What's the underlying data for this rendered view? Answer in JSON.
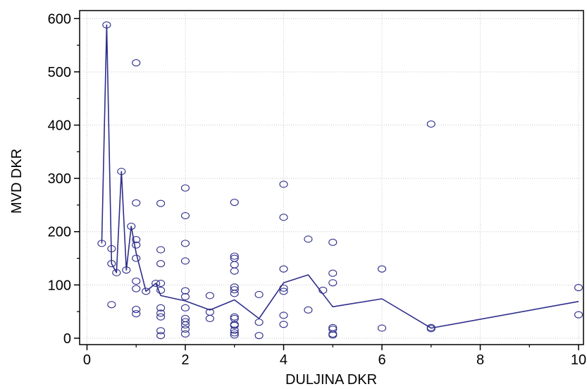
{
  "chart_data": {
    "type": "scatter",
    "xlabel": "DULJINA DKR",
    "ylabel": "MVD DKR",
    "xlim": [
      -0.15,
      10.1
    ],
    "ylim": [
      -12,
      615
    ],
    "xticks": [
      0,
      2,
      4,
      6,
      8,
      10
    ],
    "yticks": [
      0,
      100,
      200,
      300,
      400,
      500,
      600
    ],
    "xminor": [
      1,
      3,
      5,
      7,
      9
    ],
    "yminor": [
      50,
      150,
      250,
      350,
      450,
      550
    ],
    "grid": true,
    "colors": {
      "points": "#2e2e8a",
      "line": "#2e2e8a",
      "grid": "#c8c8c8",
      "axis": "#000000"
    },
    "points": [
      [
        0.3,
        178
      ],
      [
        0.4,
        588
      ],
      [
        0.5,
        168
      ],
      [
        0.5,
        140
      ],
      [
        0.5,
        63
      ],
      [
        0.6,
        123
      ],
      [
        0.7,
        313
      ],
      [
        0.8,
        128
      ],
      [
        0.9,
        210
      ],
      [
        1.0,
        517
      ],
      [
        1.0,
        254
      ],
      [
        1.0,
        185
      ],
      [
        1.0,
        175
      ],
      [
        1.0,
        150
      ],
      [
        1.0,
        107
      ],
      [
        1.0,
        93
      ],
      [
        1.0,
        54
      ],
      [
        1.0,
        46
      ],
      [
        1.2,
        88
      ],
      [
        1.4,
        103
      ],
      [
        1.5,
        253
      ],
      [
        1.5,
        166
      ],
      [
        1.5,
        140
      ],
      [
        1.5,
        103
      ],
      [
        1.5,
        90
      ],
      [
        1.5,
        57
      ],
      [
        1.5,
        47
      ],
      [
        1.5,
        40
      ],
      [
        1.5,
        14
      ],
      [
        1.5,
        5
      ],
      [
        2.0,
        282
      ],
      [
        2.0,
        230
      ],
      [
        2.0,
        178
      ],
      [
        2.0,
        145
      ],
      [
        2.0,
        89
      ],
      [
        2.0,
        78
      ],
      [
        2.0,
        57
      ],
      [
        2.0,
        37
      ],
      [
        2.0,
        31
      ],
      [
        2.0,
        25
      ],
      [
        2.0,
        17
      ],
      [
        2.0,
        8
      ],
      [
        2.5,
        80
      ],
      [
        2.5,
        49
      ],
      [
        2.5,
        37
      ],
      [
        3.0,
        255
      ],
      [
        3.0,
        154
      ],
      [
        3.0,
        150
      ],
      [
        3.0,
        138
      ],
      [
        3.0,
        126
      ],
      [
        3.0,
        96
      ],
      [
        3.0,
        91
      ],
      [
        3.0,
        84
      ],
      [
        3.0,
        40
      ],
      [
        3.0,
        37
      ],
      [
        3.0,
        26
      ],
      [
        3.0,
        24
      ],
      [
        3.0,
        15
      ],
      [
        3.0,
        10
      ],
      [
        3.0,
        6
      ],
      [
        3.5,
        82
      ],
      [
        3.5,
        30
      ],
      [
        3.5,
        5
      ],
      [
        4.0,
        289
      ],
      [
        4.0,
        227
      ],
      [
        4.0,
        130
      ],
      [
        4.0,
        94
      ],
      [
        4.0,
        88
      ],
      [
        4.0,
        43
      ],
      [
        4.0,
        26
      ],
      [
        4.5,
        186
      ],
      [
        4.5,
        53
      ],
      [
        4.8,
        90
      ],
      [
        5.0,
        180
      ],
      [
        5.0,
        122
      ],
      [
        5.0,
        104
      ],
      [
        5.0,
        20
      ],
      [
        5.0,
        17
      ],
      [
        5.0,
        8
      ],
      [
        5.0,
        6
      ],
      [
        6.0,
        130
      ],
      [
        6.0,
        19
      ],
      [
        7.0,
        402
      ],
      [
        7.0,
        20
      ],
      [
        7.0,
        18
      ],
      [
        10.0,
        95
      ],
      [
        10.0,
        44
      ]
    ],
    "smoothed_line": [
      [
        0.3,
        178
      ],
      [
        0.4,
        588
      ],
      [
        0.5,
        140
      ],
      [
        0.6,
        123
      ],
      [
        0.7,
        313
      ],
      [
        0.8,
        128
      ],
      [
        0.9,
        210
      ],
      [
        1.0,
        160
      ],
      [
        1.2,
        88
      ],
      [
        1.4,
        103
      ],
      [
        1.5,
        80
      ],
      [
        2.0,
        70
      ],
      [
        2.5,
        53
      ],
      [
        3.0,
        72
      ],
      [
        3.5,
        37
      ],
      [
        4.0,
        104
      ],
      [
        4.5,
        119
      ],
      [
        5.0,
        59
      ],
      [
        6.0,
        74
      ],
      [
        7.0,
        19
      ],
      [
        10.0,
        69
      ]
    ]
  }
}
